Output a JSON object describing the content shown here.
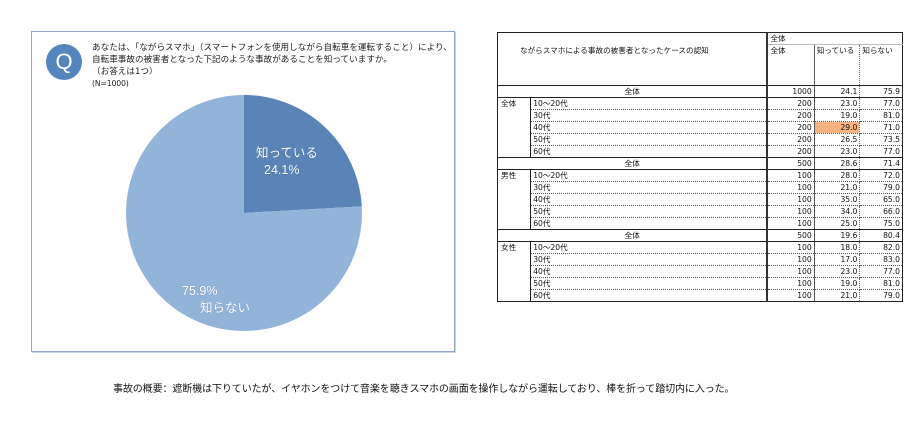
{
  "panel": {
    "badge": "Q",
    "question_lines": [
      "あなたは、「ながらスマホ」（スマートフォンを使用しながら自転車を運転すること）により、",
      "自転車事故の被害者となった下記のような事故があることを知っていますか。",
      "（お答えは1つ）"
    ],
    "sample": "(N=1000)"
  },
  "chart_data": [
    {
      "type": "pie",
      "title": "あなたは、「ながらスマホ」（スマートフォンを使用しながら自転車を運転すること）により、自転車事故の被害者となった下記のような事故があることを知っていますか。（お答えは1つ）",
      "subtitle": "(N=1000)",
      "categories": [
        "知っている",
        "知らない"
      ],
      "values": [
        24.1,
        75.9
      ],
      "colors": [
        "#5a84b8",
        "#93b4d9"
      ],
      "labels": [
        {
          "name": "知っている",
          "value_text": "24.1%"
        },
        {
          "name": "知らない",
          "value_text": "75.9%"
        }
      ],
      "start_angle_deg": 0,
      "direction": "clockwise",
      "legend": "none"
    },
    {
      "type": "table",
      "title": "ながらスマホによる事故の被害者となったケースの認知",
      "header_group": "全体",
      "columns": [
        "全体",
        "知っている",
        "知らない"
      ],
      "sections": [
        {
          "group": "全体",
          "total": {
            "label": "全体",
            "n": "1000",
            "knows": "24.1",
            "unaware": "75.9"
          },
          "rows": [
            {
              "label": "10〜20代",
              "n": "200",
              "knows": "23.0",
              "unaware": "77.0"
            },
            {
              "label": "30代",
              "n": "200",
              "knows": "19.0",
              "unaware": "81.0"
            },
            {
              "label": "40代",
              "n": "200",
              "knows": "29.0",
              "unaware": "71.0",
              "highlight": true
            },
            {
              "label": "50代",
              "n": "200",
              "knows": "26.5",
              "unaware": "73.5"
            },
            {
              "label": "60代",
              "n": "200",
              "knows": "23.0",
              "unaware": "77.0"
            }
          ]
        },
        {
          "group": "男性",
          "total": {
            "label": "全体",
            "n": "500",
            "knows": "28.6",
            "unaware": "71.4"
          },
          "rows": [
            {
              "label": "10〜20代",
              "n": "100",
              "knows": "28.0",
              "unaware": "72.0"
            },
            {
              "label": "30代",
              "n": "100",
              "knows": "21.0",
              "unaware": "79.0"
            },
            {
              "label": "40代",
              "n": "100",
              "knows": "35.0",
              "unaware": "65.0"
            },
            {
              "label": "50代",
              "n": "100",
              "knows": "34.0",
              "unaware": "66.0"
            },
            {
              "label": "60代",
              "n": "100",
              "knows": "25.0",
              "unaware": "75.0"
            }
          ]
        },
        {
          "group": "女性",
          "total": {
            "label": "全体",
            "n": "500",
            "knows": "19.6",
            "unaware": "80.4"
          },
          "rows": [
            {
              "label": "10〜20代",
              "n": "100",
              "knows": "18.0",
              "unaware": "82.0"
            },
            {
              "label": "30代",
              "n": "100",
              "knows": "17.0",
              "unaware": "83.0"
            },
            {
              "label": "40代",
              "n": "100",
              "knows": "23.0",
              "unaware": "77.0"
            },
            {
              "label": "50代",
              "n": "100",
              "knows": "19.0",
              "unaware": "81.0"
            },
            {
              "label": "60代",
              "n": "100",
              "knows": "21.0",
              "unaware": "79.0"
            }
          ]
        }
      ],
      "highlight_color": "#f6b27f"
    }
  ],
  "caption": "事故の概要：遮断機は下りていたが、イヤホンをつけて音楽を聴きスマホの画面を操作しながら運転しており、棒を折って踏切内に入った。"
}
